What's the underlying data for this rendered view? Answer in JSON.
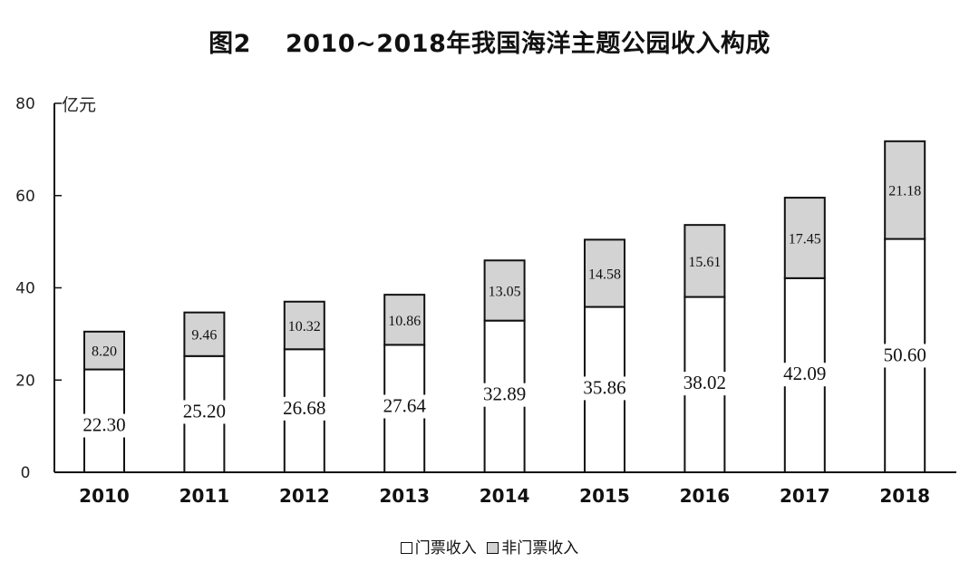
{
  "header": {
    "figure_label": "图2",
    "title": "2010~2018年我国海洋主题公园收入构成"
  },
  "axis": {
    "unit": "亿元",
    "y_ticks": [
      "0",
      "20",
      "40",
      "60",
      "80"
    ]
  },
  "legend": {
    "items": [
      {
        "label": "门票收入",
        "color": "#ffffff"
      },
      {
        "label": "非门票收入",
        "color": "#d3d3d3"
      }
    ]
  },
  "colors": {
    "ticket": "#ffffff",
    "non_ticket": "#d3d3d3",
    "stroke": "#111111"
  },
  "chart_data": {
    "type": "bar",
    "stacked": true,
    "title": "2010~2018年我国海洋主题公园收入构成",
    "figure_label": "图2",
    "xlabel": "",
    "ylabel": "亿元",
    "ylim": [
      0,
      80
    ],
    "y_ticks": [
      0,
      20,
      40,
      60,
      80
    ],
    "grid": false,
    "legend_position": "bottom",
    "categories": [
      "2010",
      "2011",
      "2012",
      "2013",
      "2014",
      "2015",
      "2016",
      "2017",
      "2018"
    ],
    "series": [
      {
        "name": "门票收入",
        "values": [
          22.3,
          25.2,
          26.68,
          27.64,
          32.89,
          35.86,
          38.02,
          42.09,
          50.6
        ]
      },
      {
        "name": "非门票收入",
        "values": [
          8.2,
          9.46,
          10.32,
          10.86,
          13.05,
          14.58,
          15.61,
          17.45,
          21.18
        ]
      }
    ],
    "labels": {
      "门票收入": [
        "22.30",
        "25.20",
        "26.68",
        "27.64",
        "32.89",
        "35.86",
        "38.02",
        "42.09",
        "50.60"
      ],
      "非门票收入": [
        "8.20",
        "9.46",
        "10.32",
        "10.86",
        "13.05",
        "14.58",
        "15.61",
        "17.45",
        "21.18"
      ]
    }
  }
}
